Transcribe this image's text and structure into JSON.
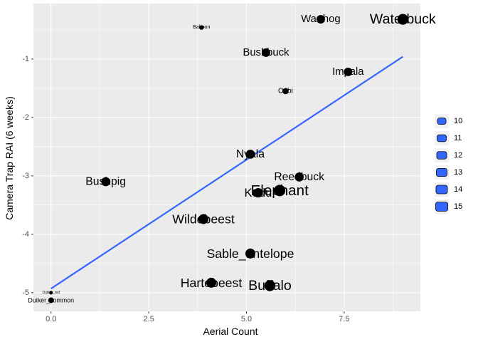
{
  "chart_data": {
    "type": "scatter",
    "xlabel": "Aerial Count",
    "ylabel": "Camera Trap RAI (6 weeks)",
    "xlim": [
      -0.45,
      9.45
    ],
    "ylim": [
      -5.32,
      -0.05
    ],
    "x_ticks": [
      0.0,
      2.5,
      5.0,
      7.5
    ],
    "x_tick_labels": [
      "0.0",
      "2.5",
      "5.0",
      "7.5"
    ],
    "y_ticks": [
      -1,
      -2,
      -3,
      -4,
      -5
    ],
    "y_tick_labels": [
      "-1",
      "-2",
      "-3",
      "-4",
      "-5"
    ],
    "grid": true,
    "panel_background": "#ebebeb",
    "grid_color": "#ffffff",
    "point_color": "#000000",
    "fit_line": {
      "x": [
        0.0,
        9.0
      ],
      "y": [
        -4.93,
        -0.96
      ],
      "color": "#3366ff"
    },
    "points": [
      {
        "label": "Waterbuck",
        "x": 9.0,
        "y": -0.32,
        "size": 14.5
      },
      {
        "label": "Warthog",
        "x": 6.9,
        "y": -0.32,
        "size": 12.0
      },
      {
        "label": "Baboon",
        "x": 3.85,
        "y": -0.46,
        "size": 8.0
      },
      {
        "label": "Bushbuck",
        "x": 5.5,
        "y": -0.89,
        "size": 12.0
      },
      {
        "label": "Impala",
        "x": 7.6,
        "y": -1.22,
        "size": 12.0
      },
      {
        "label": "Oribi",
        "x": 6.0,
        "y": -1.55,
        "size": 9.5
      },
      {
        "label": "Nyala",
        "x": 5.1,
        "y": -2.63,
        "size": 12.5
      },
      {
        "label": "Bushpig",
        "x": 1.4,
        "y": -3.1,
        "size": 12.5
      },
      {
        "label": "Reedbuck",
        "x": 6.35,
        "y": -3.02,
        "size": 12.5
      },
      {
        "label": "Kudu",
        "x": 5.3,
        "y": -3.29,
        "size": 13.0
      },
      {
        "label": "Elephant",
        "x": 5.85,
        "y": -3.25,
        "size": 15.0
      },
      {
        "label": "Wildebeest",
        "x": 3.9,
        "y": -3.74,
        "size": 13.5
      },
      {
        "label": "Sable_antelope",
        "x": 5.1,
        "y": -4.33,
        "size": 13.5
      },
      {
        "label": "Hartebeest",
        "x": 4.1,
        "y": -4.83,
        "size": 13.5
      },
      {
        "label": "Buffalo",
        "x": 5.6,
        "y": -4.88,
        "size": 14.5
      },
      {
        "label": "Duiker_red",
        "x": 0.0,
        "y": -5.0,
        "size": 7.0
      },
      {
        "label": "Duiker_common",
        "x": 0.0,
        "y": -5.13,
        "size": 9.0
      }
    ],
    "legend": {
      "placement": "right",
      "entries": [
        "10",
        "11",
        "12",
        "13",
        "14",
        "15"
      ],
      "fill_color": "#3366ff"
    }
  }
}
